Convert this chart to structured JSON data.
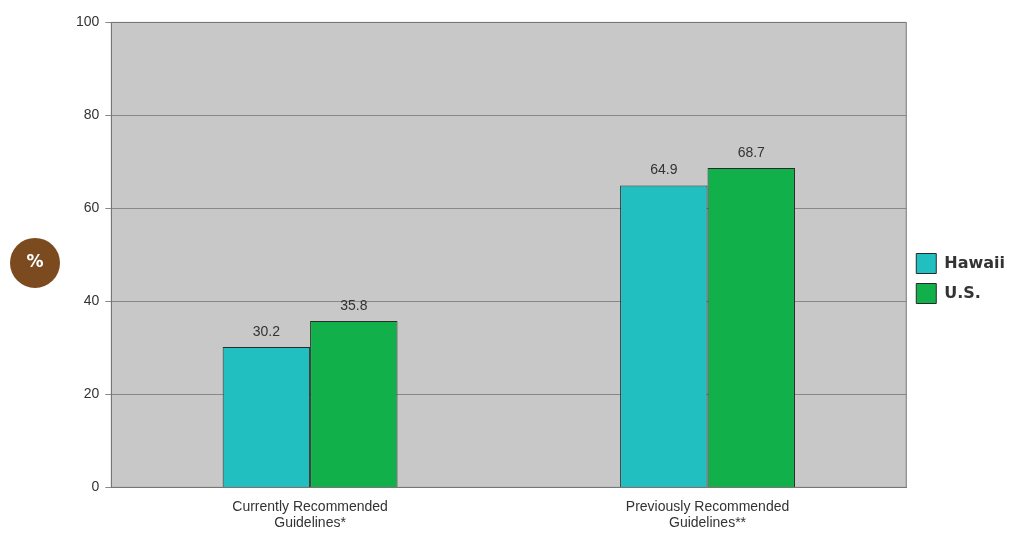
{
  "chart_data": {
    "type": "bar",
    "ylabel": "%",
    "categories": [
      "Currently Recommended Guidelines*",
      "Previously Recommended Guidelines**"
    ],
    "series": [
      {
        "name": "Hawaii",
        "color": "#22bfc0",
        "values": [
          30.2,
          64.9
        ]
      },
      {
        "name": "U.S.",
        "color": "#12b04a",
        "values": [
          35.8,
          68.7
        ]
      }
    ],
    "ylim": [
      0,
      100
    ],
    "yticks": [
      0,
      20,
      40,
      60,
      80,
      100
    ],
    "grid": "y",
    "legend": "right",
    "data_labels": true
  }
}
